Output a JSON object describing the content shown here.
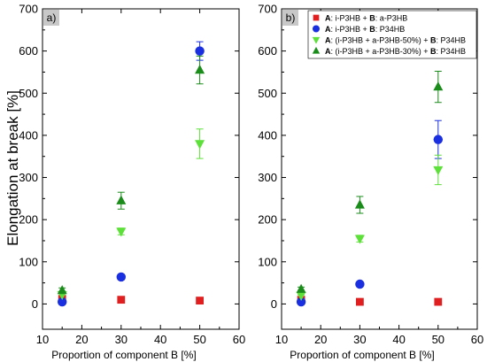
{
  "figure": {
    "ylabel": "Elongation at break [%]",
    "xlabel": "Proportion of component B [%]"
  },
  "legend": {
    "entries": [
      {
        "prefix_a": "A",
        "text_1": ": i-P3HB + ",
        "prefix_b": "B",
        "text_2": ": a-P3HB",
        "marker": "square",
        "color": "#e02020"
      },
      {
        "prefix_a": "A",
        "text_1": ": i-P3HB + ",
        "prefix_b": "B",
        "text_2": ": P34HB",
        "marker": "circle",
        "color": "#1a2fe0"
      },
      {
        "prefix_a": "A",
        "text_1": ": (i-P3HB + a-P3HB-50%) + ",
        "prefix_b": "B",
        "text_2": ": P34HB",
        "marker": "triangle-down",
        "color": "#5ee03a"
      },
      {
        "prefix_a": "A",
        "text_1": ": (i-P3HB + a-P3HB-30%) + ",
        "prefix_b": "B",
        "text_2": ": P34HB",
        "marker": "triangle-up",
        "color": "#1a8c1a"
      }
    ]
  },
  "chart_data": [
    {
      "type": "scatter",
      "panel_label": "a)",
      "xlim": [
        10,
        60
      ],
      "ylim": [
        -60,
        700
      ],
      "xticks": [
        "10",
        "20",
        "30",
        "40",
        "50",
        "60"
      ],
      "yticks": [
        "0",
        "100",
        "200",
        "300",
        "400",
        "500",
        "600",
        "700"
      ],
      "series": [
        {
          "marker": "square",
          "color": "#e02020",
          "x": [
            15,
            30,
            50
          ],
          "y": [
            12,
            10,
            8
          ],
          "err": [
            0,
            0,
            0
          ]
        },
        {
          "marker": "circle",
          "color": "#1a2fe0",
          "x": [
            15,
            30,
            50
          ],
          "y": [
            5,
            64,
            600
          ],
          "err": [
            0,
            0,
            22
          ]
        },
        {
          "marker": "triangle-down",
          "color": "#5ee03a",
          "x": [
            15,
            30,
            50
          ],
          "y": [
            22,
            172,
            380
          ],
          "err": [
            0,
            8,
            35
          ]
        },
        {
          "marker": "triangle-up",
          "color": "#1a8c1a",
          "x": [
            15,
            30,
            50
          ],
          "y": [
            32,
            245,
            555
          ],
          "err": [
            6,
            20,
            33
          ]
        }
      ]
    },
    {
      "type": "scatter",
      "panel_label": "b)",
      "xlim": [
        10,
        60
      ],
      "ylim": [
        -60,
        700
      ],
      "xticks": [
        "10",
        "20",
        "30",
        "40",
        "50",
        "60"
      ],
      "yticks": [
        "0",
        "100",
        "200",
        "300",
        "400",
        "500",
        "600",
        "700"
      ],
      "series": [
        {
          "marker": "square",
          "color": "#e02020",
          "x": [
            15,
            30,
            50
          ],
          "y": [
            10,
            5,
            5
          ],
          "err": [
            0,
            0,
            0
          ]
        },
        {
          "marker": "circle",
          "color": "#1a2fe0",
          "x": [
            15,
            30,
            50
          ],
          "y": [
            5,
            47,
            390
          ],
          "err": [
            0,
            0,
            45
          ]
        },
        {
          "marker": "triangle-down",
          "color": "#5ee03a",
          "x": [
            15,
            30,
            50
          ],
          "y": [
            20,
            155,
            318
          ],
          "err": [
            0,
            8,
            35
          ]
        },
        {
          "marker": "triangle-up",
          "color": "#1a8c1a",
          "x": [
            15,
            30,
            50
          ],
          "y": [
            35,
            235,
            515
          ],
          "err": [
            5,
            20,
            37
          ]
        }
      ]
    }
  ]
}
